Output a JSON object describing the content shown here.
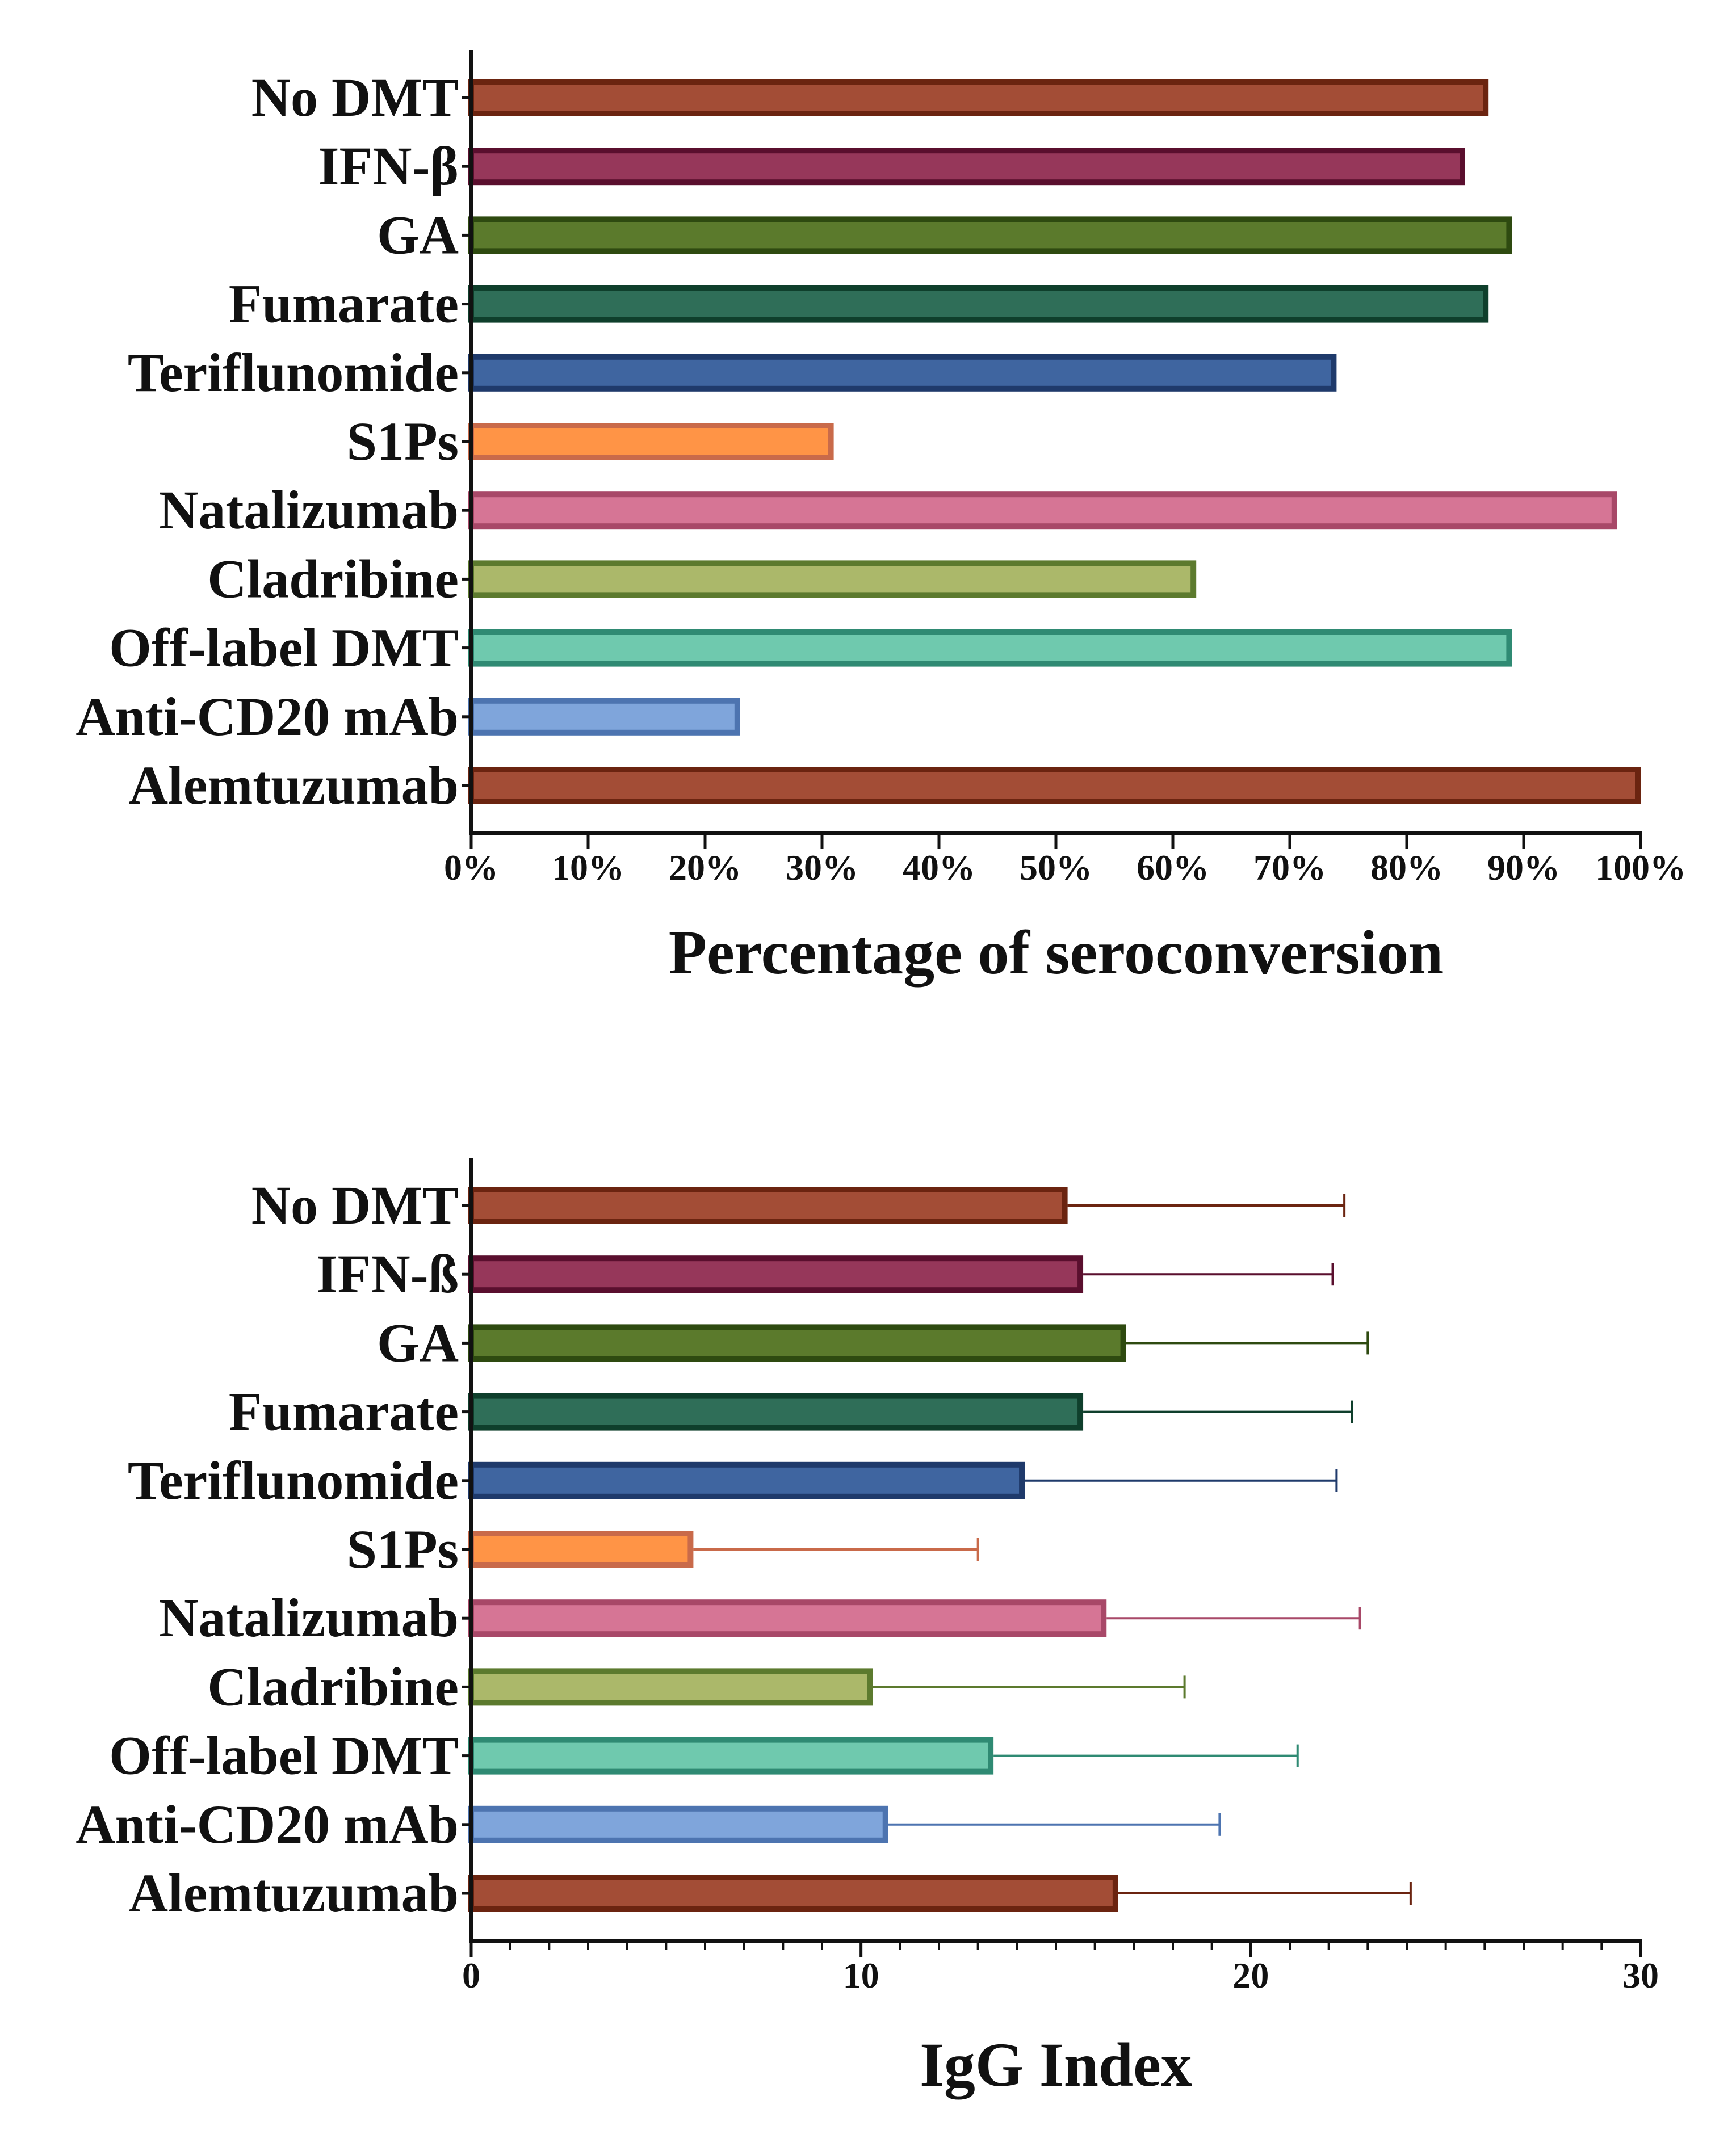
{
  "chart_data": [
    {
      "type": "bar",
      "orientation": "horizontal",
      "title": "",
      "xlabel": "Percentage of seroconversion",
      "ylabel": "",
      "xlim": [
        0,
        100
      ],
      "ticks": [
        0,
        10,
        20,
        30,
        40,
        50,
        60,
        70,
        80,
        90,
        100
      ],
      "tick_labels": [
        "0%",
        "10%",
        "20%",
        "30%",
        "40%",
        "50%",
        "60%",
        "70%",
        "80%",
        "90%",
        "100%"
      ],
      "categories": [
        "No DMT",
        "IFN-β",
        "GA",
        "Fumarate",
        "Teriflunomide",
        "S1Ps",
        "Natalizumab",
        "Cladribine",
        "Off-label DMT",
        "Anti-CD20 mAb",
        "Alemtuzumab"
      ],
      "values": [
        87,
        85,
        89,
        87,
        74,
        31,
        98,
        62,
        89,
        23,
        100
      ]
    },
    {
      "type": "bar",
      "orientation": "horizontal",
      "title": "",
      "xlabel": "IgG Index",
      "ylabel": "",
      "xlim": [
        0,
        30
      ],
      "ticks": [
        0,
        10,
        20,
        30
      ],
      "tick_labels": [
        "0",
        "10",
        "20",
        "30"
      ],
      "categories": [
        "No DMT",
        "IFN-ß",
        "GA",
        "Fumarate",
        "Teriflunomide",
        "S1Ps",
        "Natalizumab",
        "Cladribine",
        "Off-label DMT",
        "Anti-CD20 mAb",
        "Alemtuzumab"
      ],
      "values": [
        15.3,
        15.7,
        16.8,
        15.7,
        14.2,
        5.7,
        16.3,
        10.3,
        13.4,
        10.7,
        16.6
      ],
      "error_upper": [
        22.4,
        22.1,
        23.0,
        22.6,
        22.2,
        13.0,
        22.8,
        18.3,
        21.2,
        19.2,
        24.1
      ]
    }
  ],
  "colors": {
    "fills": [
      "#a34d36",
      "#96375a",
      "#5b7a2c",
      "#2f6e58",
      "#3f65a0",
      "#ff9446",
      "#d67595",
      "#abb86a",
      "#6fc9ae",
      "#7fa5db",
      "#a34d36"
    ],
    "borders": [
      "#6b2410",
      "#5a0f2e",
      "#2e4a10",
      "#0f3f2c",
      "#1f3a6b",
      "#c96a4a",
      "#a84868",
      "#5c7a2e",
      "#2f8a73",
      "#4d74b0",
      "#6b2410"
    ]
  }
}
